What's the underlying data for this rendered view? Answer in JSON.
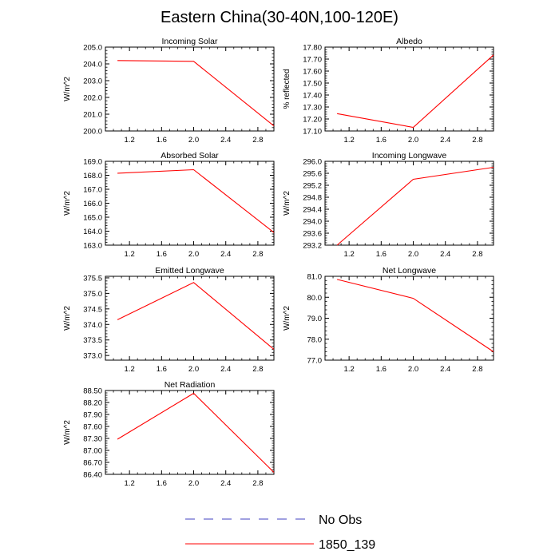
{
  "title": "Eastern China(30-40N,100-120E)",
  "chart_data": [
    {
      "type": "line",
      "title": "Incoming Solar",
      "ylabel": "W/m^2",
      "x": [
        1.05,
        2.0,
        3.0
      ],
      "series": [
        {
          "name": "1850_139",
          "color": "#ff0000",
          "values": [
            204.2,
            204.15,
            200.3
          ]
        }
      ],
      "xlim": [
        0.9,
        3.0
      ],
      "ylim": [
        200.0,
        205.0
      ],
      "xticks": [
        "1.2",
        "1.6",
        "2.0",
        "2.4",
        "2.8"
      ],
      "yticks": [
        "200.0",
        "201.0",
        "202.0",
        "203.0",
        "204.0",
        "205.0"
      ]
    },
    {
      "type": "line",
      "title": "Albedo",
      "ylabel": "% reflected",
      "x": [
        1.05,
        2.0,
        3.0
      ],
      "series": [
        {
          "name": "1850_139",
          "color": "#ff0000",
          "values": [
            17.245,
            17.13,
            17.735
          ]
        }
      ],
      "xlim": [
        0.9,
        3.0
      ],
      "ylim": [
        17.1,
        17.8
      ],
      "xticks": [
        "1.2",
        "1.6",
        "2.0",
        "2.4",
        "2.8"
      ],
      "yticks": [
        "17.10",
        "17.20",
        "17.30",
        "17.40",
        "17.50",
        "17.60",
        "17.70",
        "17.80"
      ]
    },
    {
      "type": "line",
      "title": "Absorbed Solar",
      "ylabel": "W/m^2",
      "x": [
        1.05,
        2.0,
        3.0
      ],
      "series": [
        {
          "name": "1850_139",
          "color": "#ff0000",
          "values": [
            168.15,
            168.4,
            163.9
          ]
        }
      ],
      "xlim": [
        0.9,
        3.0
      ],
      "ylim": [
        163.0,
        169.0
      ],
      "xticks": [
        "1.2",
        "1.6",
        "2.0",
        "2.4",
        "2.8"
      ],
      "yticks": [
        "163.0",
        "164.0",
        "165.0",
        "166.0",
        "167.0",
        "168.0",
        "169.0"
      ]
    },
    {
      "type": "line",
      "title": "Incoming Longwave",
      "ylabel": "W/m^2",
      "x": [
        1.05,
        2.0,
        3.0
      ],
      "series": [
        {
          "name": "1850_139",
          "color": "#ff0000",
          "values": [
            293.2,
            295.4,
            295.8
          ]
        }
      ],
      "xlim": [
        0.9,
        3.0
      ],
      "ylim": [
        293.2,
        296.0
      ],
      "xticks": [
        "1.2",
        "1.6",
        "2.0",
        "2.4",
        "2.8"
      ],
      "yticks": [
        "293.2",
        "293.6",
        "294.0",
        "294.4",
        "294.8",
        "295.2",
        "295.6",
        "296.0"
      ]
    },
    {
      "type": "line",
      "title": "Emitted Longwave",
      "ylabel": "W/m^2",
      "x": [
        1.05,
        2.0,
        3.0
      ],
      "series": [
        {
          "name": "1850_139",
          "color": "#ff0000",
          "values": [
            374.15,
            375.35,
            373.2
          ]
        }
      ],
      "xlim": [
        0.9,
        3.0
      ],
      "ylim": [
        372.85,
        375.55
      ],
      "xticks": [
        "1.2",
        "1.6",
        "2.0",
        "2.4",
        "2.8"
      ],
      "yticks": [
        "373.0",
        "373.5",
        "374.0",
        "374.5",
        "375.0",
        "375.5"
      ]
    },
    {
      "type": "line",
      "title": "Net Longwave",
      "ylabel": "W/m^2",
      "x": [
        1.05,
        2.0,
        3.0
      ],
      "series": [
        {
          "name": "1850_139",
          "color": "#ff0000",
          "values": [
            80.85,
            79.95,
            77.4
          ]
        }
      ],
      "xlim": [
        0.9,
        3.0
      ],
      "ylim": [
        77.0,
        81.0
      ],
      "xticks": [
        "1.2",
        "1.6",
        "2.0",
        "2.4",
        "2.8"
      ],
      "yticks": [
        "77.0",
        "78.0",
        "79.0",
        "80.0",
        "81.0"
      ]
    },
    {
      "type": "line",
      "title": "Net Radiation",
      "ylabel": "W/m^2",
      "x": [
        1.05,
        2.0,
        3.0
      ],
      "series": [
        {
          "name": "1850_139",
          "color": "#ff0000",
          "values": [
            87.28,
            88.43,
            86.45
          ]
        }
      ],
      "xlim": [
        0.9,
        3.0
      ],
      "ylim": [
        86.4,
        88.5
      ],
      "xticks": [
        "1.2",
        "1.6",
        "2.0",
        "2.4",
        "2.8"
      ],
      "yticks": [
        "86.40",
        "86.70",
        "87.00",
        "87.30",
        "87.60",
        "87.90",
        "88.20",
        "88.50"
      ]
    }
  ],
  "legend": [
    {
      "label": "No Obs",
      "color": "#4040c0",
      "style": "dashed"
    },
    {
      "label": "1850_139",
      "color": "#ff0000",
      "style": "solid"
    }
  ]
}
